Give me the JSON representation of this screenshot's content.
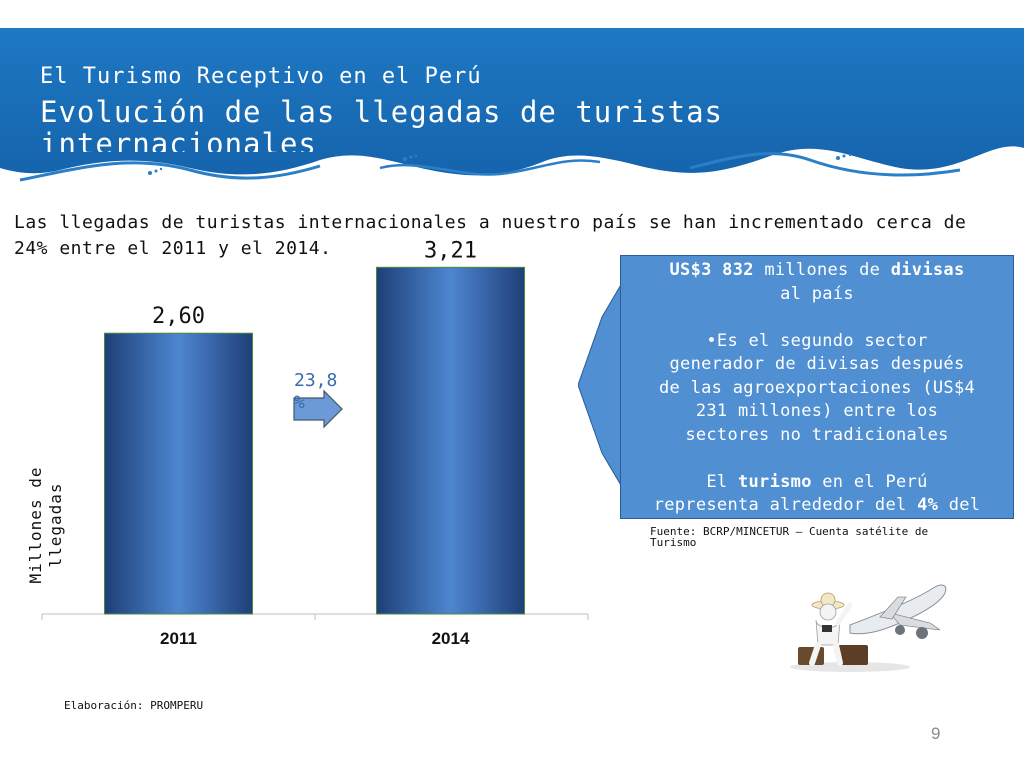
{
  "header": {
    "subtitle": "El Turismo Receptivo en el Perú",
    "title": "Evolución de las llegadas de turistas internacionales"
  },
  "intro_text": "Las llegadas de turistas internacionales a nuestro país se han incrementado cerca de 24% entre el 2011 y el 2014.",
  "chart_data": {
    "type": "bar",
    "categories": [
      "2011",
      "2014"
    ],
    "values": [
      2.6,
      3.21
    ],
    "data_labels": [
      "2,60",
      "3,21"
    ],
    "ylabel": "Millones de llegadas",
    "ylim": [
      0,
      3.5
    ],
    "grid": false,
    "bar_color": "#2f62a8",
    "growth_label": "23,8 %"
  },
  "callout": {
    "line1_amount": "US$3 832",
    "line1_mid": " millones de ",
    "line1_bold": "divisas",
    "line2": "al país",
    "line3": "•Es  el segundo sector",
    "line4": "generador de divisas después",
    "line5": "de las agroexportaciones (US$4",
    "line6": "231 millones) entre los",
    "line7": "sectores no tradicionales",
    "line8_pre": "El ",
    "line8_bold": "turismo",
    "line8_post": " en el Perú",
    "line9_pre": "representa alrededor del ",
    "line9_bold": "4%",
    "line9_post": " del"
  },
  "source_text": "Fuente: BCRP/MINCETUR – Cuenta satélite de Turismo",
  "elaboration_text": "Elaboración: PROMPERU",
  "page_number": "9",
  "colors": {
    "header_blue": "#1a6db5",
    "callout_blue": "#4f8fd2",
    "arrow_fill": "#4a86c8"
  },
  "icons": {
    "illustration": "tourist-and-airplane-illustration"
  }
}
